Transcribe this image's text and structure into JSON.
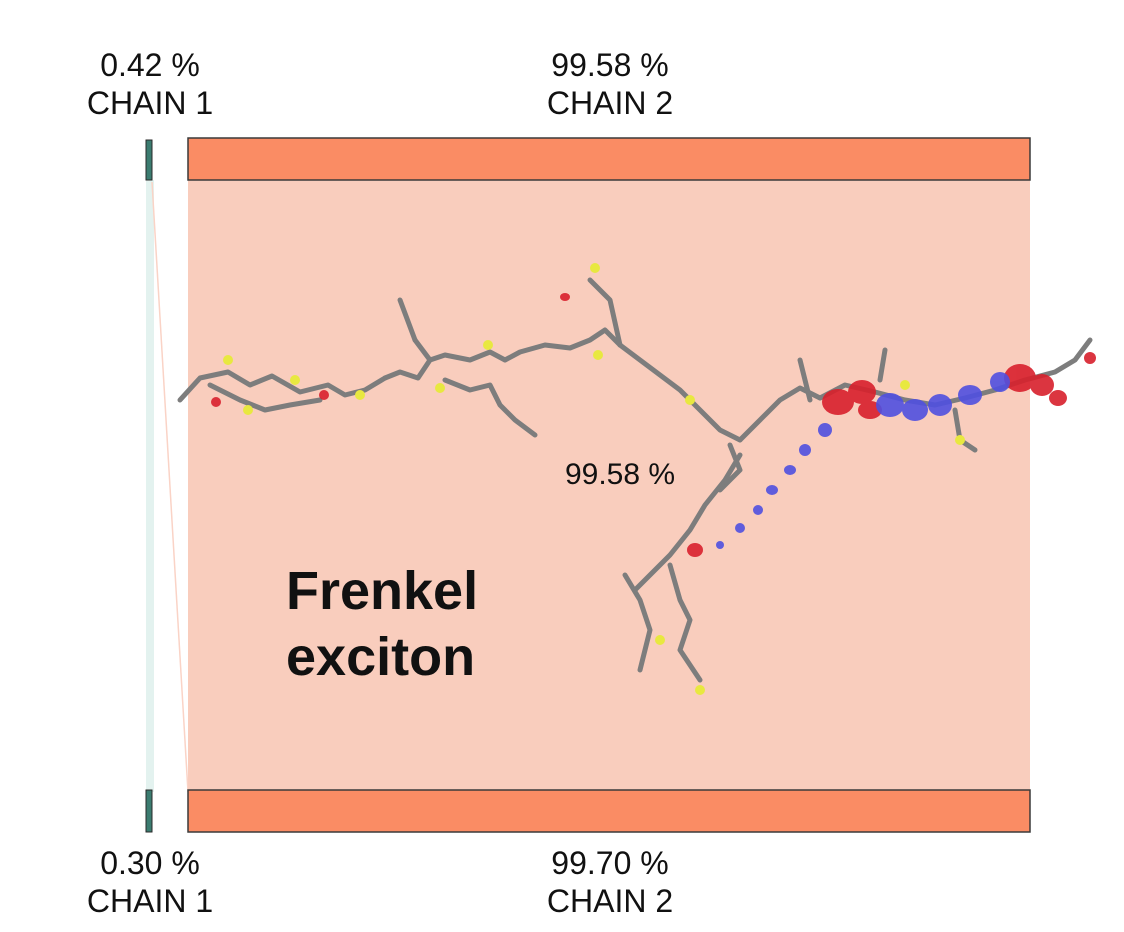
{
  "top": {
    "chain1": {
      "percent": "0.42 %",
      "label": "CHAIN 1"
    },
    "chain2": {
      "percent": "99.58 %",
      "label": "CHAIN 2"
    }
  },
  "bottom": {
    "chain1": {
      "percent": "0.30 %",
      "label": "CHAIN 1"
    },
    "chain2": {
      "percent": "99.70 %",
      "label": "CHAIN 2"
    }
  },
  "center_percent": "99.58 %",
  "exciton": {
    "line1": "Frenkel",
    "line2": "exciton"
  },
  "colors": {
    "bar": "#fa8c64",
    "band": "#f9cdbd",
    "chain1_bar": "#3b7c70",
    "electron": "#5050e0",
    "hole": "#d8202c",
    "bond": "#808080",
    "sulfur": "#e8e840"
  }
}
